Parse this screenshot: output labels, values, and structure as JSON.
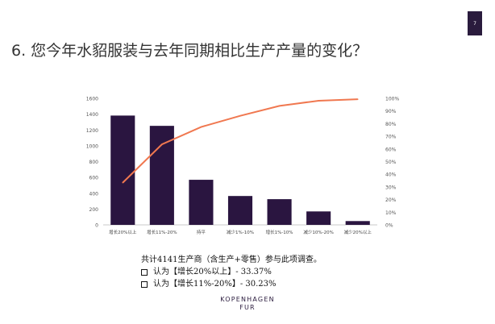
{
  "page_number": "7",
  "title": "6. 您今年水貂服装与去年同期相比生产产量的变化？",
  "chart_data": {
    "type": "bar",
    "categories": [
      "增长20%以上",
      "增长11%-20%",
      "持平",
      "减少1%-10%",
      "增长1%-10%",
      "减少10%-20%",
      "减少20%以上"
    ],
    "series": [
      {
        "type": "bar",
        "values": [
          1382,
          1252,
          570,
          365,
          325,
          170,
          48
        ],
        "color": "#2a1540"
      },
      {
        "type": "line",
        "axis": "right",
        "values": [
          33.37,
          63.6,
          77.36,
          86.17,
          94.02,
          98.12,
          99.28
        ],
        "color": "#f07850"
      }
    ],
    "y_left": {
      "ylim": [
        0,
        1600
      ],
      "ticks": [
        0,
        200,
        400,
        600,
        800,
        1000,
        1200,
        1400,
        1600
      ]
    },
    "y_right": {
      "ylim": [
        0,
        100
      ],
      "ticks": [
        "0%",
        "10%",
        "20%",
        "30%",
        "40%",
        "50%",
        "60%",
        "70%",
        "80%",
        "90%",
        "100%"
      ]
    },
    "grid": false,
    "legend": "none"
  },
  "note": {
    "line1": "共计4141生产商（含生产+零售）参与此项调查。",
    "line2": "认为【增长20%以上】- 33.37%",
    "line3": "认为【增长11%-20%】- 30.23%"
  },
  "brand": {
    "line1": "KOPENHAGEN",
    "line2": "FUR"
  }
}
